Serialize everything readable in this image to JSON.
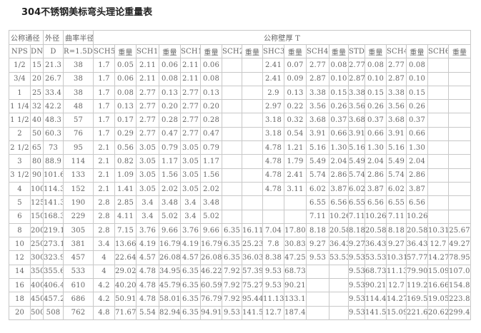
{
  "title": "304不锈钢美标弯头理论重量表",
  "header_row1": [
    "公称通径",
    "外径",
    "曲率半径",
    "公称壁厚 T"
  ],
  "header_row2": [
    "NPS",
    "DN",
    "D",
    "R=1.5D",
    "SCH5s",
    "重量",
    "SCH10s",
    "重量",
    "SCH10",
    "重量",
    "SCH20",
    "重量",
    "SHC30",
    "重量",
    "SCH40s",
    "重量",
    "STD",
    "重量",
    "SCH40",
    "重量",
    "SCH60",
    "重量"
  ],
  "rows": [
    [
      "1/2",
      "15",
      "21.3",
      "38",
      "1.7",
      "0.05",
      "2.11",
      "0.06",
      "2.11",
      "0.06",
      "",
      "",
      "2.41",
      "0.07",
      "2.77",
      "0.08",
      "2.77",
      "0.08",
      "2.77",
      "0.08",
      "",
      ""
    ],
    [
      "3/4",
      "20",
      "26.7",
      "38",
      "1.7",
      "0.06",
      "2.11",
      "0.08",
      "2.11",
      "0.08",
      "",
      "",
      "2.41",
      "0.09",
      "2.87",
      "0.10",
      "2.87",
      "0.10",
      "2.87",
      "0.10",
      "",
      ""
    ],
    [
      "1",
      "25",
      "33.4",
      "38",
      "1.7",
      "0.08",
      "2.77",
      "0.13",
      "2.77",
      "0.13",
      "",
      "",
      "2.9",
      "0.13",
      "3.38",
      "0.15",
      "3.38",
      "0.15",
      "3.38",
      "0.15",
      "",
      ""
    ],
    [
      "1 1/4",
      "32",
      "42.2",
      "48",
      "1.7",
      "0.13",
      "2.77",
      "0.20",
      "2.77",
      "0.20",
      "",
      "",
      "2.97",
      "0.22",
      "3.56",
      "0.26",
      "3.56",
      "0.26",
      "3.56",
      "0.26",
      "",
      ""
    ],
    [
      "1 1/2",
      "40",
      "48.3",
      "57",
      "1.7",
      "0.17",
      "2.77",
      "0.28",
      "2.77",
      "0.28",
      "",
      "",
      "3.18",
      "0.32",
      "3.68",
      "0.37",
      "3.68",
      "0.37",
      "3.68",
      "0.37",
      "",
      ""
    ],
    [
      "2",
      "50",
      "60.3",
      "76",
      "1.7",
      "0.29",
      "2.77",
      "0.47",
      "2.77",
      "0.47",
      "",
      "",
      "3.18",
      "0.54",
      "3.91",
      "0.66",
      "3.91",
      "0.66",
      "3.91",
      "0.66",
      "",
      ""
    ],
    [
      "2 1/2",
      "65",
      "73",
      "95",
      "2.1",
      "0.56",
      "3.05",
      "0.79",
      "3.05",
      "0.79",
      "",
      "",
      "4.78",
      "1.21",
      "5.16",
      "1.30",
      "5.16",
      "1.30",
      "5.16",
      "1.30",
      "",
      ""
    ],
    [
      "3",
      "80",
      "88.9",
      "114",
      "2.1",
      "0.82",
      "3.05",
      "1.17",
      "3.05",
      "1.17",
      "",
      "",
      "4.78",
      "1.79",
      "5.49",
      "2.04",
      "5.49",
      "2.04",
      "5.49",
      "2.04",
      "",
      ""
    ],
    [
      "3 1/2",
      "90",
      "101.6",
      "133",
      "2.1",
      "1.09",
      "3.05",
      "1.56",
      "3.05",
      "1.56",
      "",
      "",
      "4.78",
      "2.41",
      "5.74",
      "2.86",
      "5.74",
      "2.86",
      "5.74",
      "2.86",
      "",
      ""
    ],
    [
      "4",
      "100",
      "114.3",
      "152",
      "2.1",
      "1.41",
      "3.05",
      "2.02",
      "3.05",
      "2.02",
      "",
      "",
      "4.78",
      "3.11",
      "6.02",
      "3.87",
      "6.02",
      "3.87",
      "6.02",
      "3.87",
      "",
      ""
    ],
    [
      "5",
      "125",
      "141.3",
      "190",
      "2.8",
      "2.85",
      "3.4",
      "3.48",
      "3.4",
      "3.48",
      "",
      "",
      "",
      "",
      "6.55",
      "6.56",
      "6.55",
      "6.56",
      "6.55",
      "6.56",
      "",
      ""
    ],
    [
      "6",
      "150",
      "168.3",
      "229",
      "2.8",
      "4.11",
      "3.4",
      "5.02",
      "3.4",
      "5.02",
      "",
      "",
      "",
      "",
      "7.11",
      "10.26",
      "7.11",
      "10.26",
      "7.11",
      "10.26",
      "",
      ""
    ],
    [
      "8",
      "200",
      "219.1",
      "305",
      "2.8",
      "7.15",
      "3.76",
      "9.66",
      "3.76",
      "9.66",
      "6.35",
      "16.11",
      "7.04",
      "17.80",
      "8.18",
      "20.58",
      "8.18",
      "20.58",
      "8.18",
      "20.58",
      "10.31",
      "25.67"
    ],
    [
      "10",
      "250",
      "273.1",
      "381",
      "3.4",
      "13.66",
      "4.19",
      "16.79",
      "4.19",
      "16.79",
      "6.35",
      "25.23",
      "7.8",
      "30.83",
      "9.27",
      "36.43",
      "9.27",
      "36.43",
      "9.27",
      "36.43",
      "12.7",
      "49.27"
    ],
    [
      "12",
      "300",
      "323.9",
      "457",
      "4",
      "22.64",
      "4.57",
      "26.08",
      "4.57",
      "26.08",
      "6.35",
      "36.03",
      "8.38",
      "47.25",
      "9.53",
      "53.53",
      "9.53",
      "53.53",
      "10.31",
      "57.77",
      "14.27",
      "78.95"
    ],
    [
      "14",
      "350",
      "355.6",
      "533",
      "4",
      "29.02",
      "4.78",
      "34.95",
      "6.35",
      "46.22",
      "7.92",
      "57.39",
      "9.53",
      "68.73",
      "",
      "",
      "9.53",
      "68.73",
      "11.13",
      "79.90",
      "15.09",
      "107.08"
    ],
    [
      "16",
      "400",
      "406.4",
      "610",
      "4.2",
      "40.20",
      "4.78",
      "45.79",
      "6.35",
      "60.59",
      "7.92",
      "75.27",
      "9.53",
      "90.21",
      "",
      "",
      "9.53",
      "90.21",
      "12.7",
      "119.25",
      "16.66",
      "154.87"
    ],
    [
      "18",
      "450",
      "457.2",
      "686",
      "4.2",
      "50.91",
      "4.78",
      "58.01",
      "6.35",
      "76.79",
      "7.92",
      "95.44",
      "11.13",
      "133.17",
      "",
      "",
      "9.53",
      "114.43",
      "14.27",
      "169.54",
      "19.05",
      "223.88"
    ],
    [
      "20",
      "500",
      "508",
      "762",
      "4.8",
      "71.67",
      "5.54",
      "82.94",
      "6.35",
      "94.91",
      "9.53",
      "141.53",
      "12.7",
      "187.41",
      "",
      "",
      "9.53",
      "141.53",
      "15.09",
      "221.61",
      "20.62",
      "299.43"
    ]
  ]
}
